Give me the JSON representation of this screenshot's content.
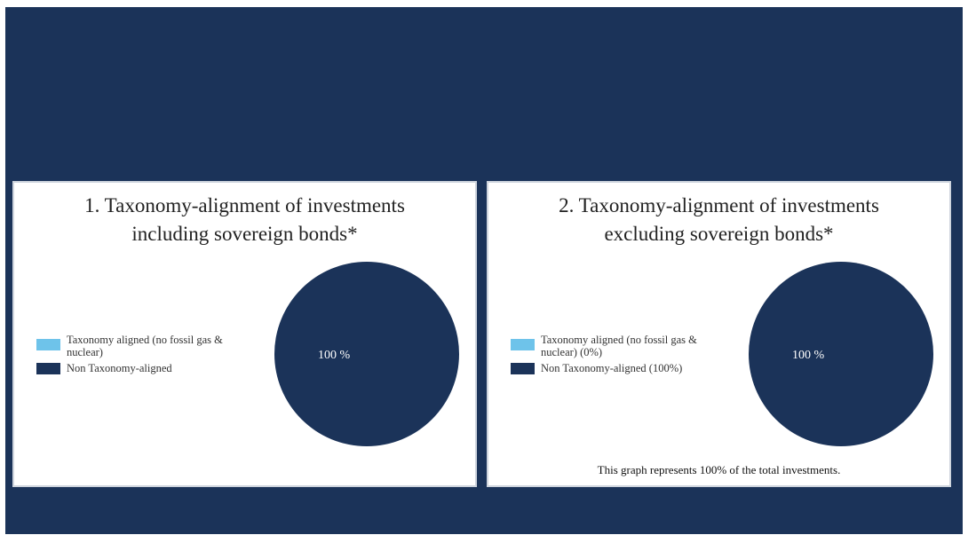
{
  "colors": {
    "background": "#1b3359",
    "panel": "#ffffff",
    "aligned": "#6ec3ea",
    "non_aligned": "#1b3359",
    "slice_label": "#ffffff"
  },
  "chart_data": [
    {
      "type": "pie",
      "title": "1. Taxonomy-alignment of investments\nincluding sovereign bonds*",
      "legend_position": "left",
      "series": [
        {
          "name": "Taxonomy aligned (no fossil gas & nuclear)",
          "value": 0,
          "color": "#6ec3ea"
        },
        {
          "name": "Non Taxonomy-aligned",
          "value": 100,
          "color": "#1b3359"
        }
      ],
      "slice_labels": [
        "",
        "100 %"
      ],
      "note": ""
    },
    {
      "type": "pie",
      "title": "2. Taxonomy-alignment of investments\nexcluding sovereign bonds*",
      "legend_position": "left",
      "series": [
        {
          "name": "Taxonomy aligned (no fossil gas & nuclear) (0%)",
          "value": 0,
          "color": "#6ec3ea"
        },
        {
          "name": "Non Taxonomy-aligned (100%)",
          "value": 100,
          "color": "#1b3359"
        }
      ],
      "slice_labels": [
        "",
        "100 %"
      ],
      "note": "This graph represents 100% of the total investments."
    }
  ]
}
